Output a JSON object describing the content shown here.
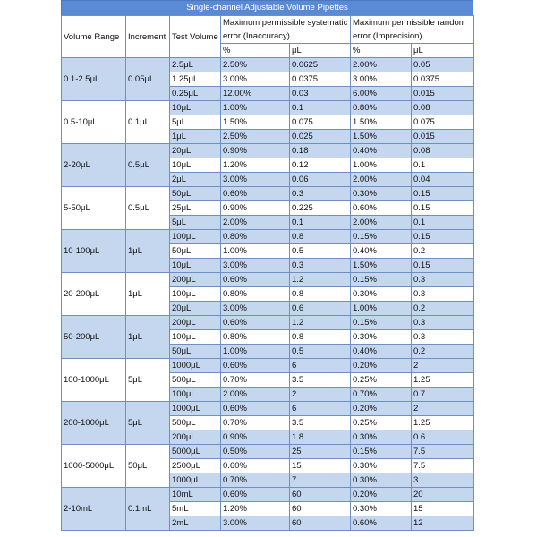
{
  "title": "Single-channel Adjustable Volume Pipettes",
  "headers": {
    "volume_range": "Volume Range",
    "increment": "Increment",
    "test_volume": "Test Volume",
    "systematic": "Maximum permissible systematic error (Inaccuracy)",
    "random": "Maximum permissible random error (Imprecision)",
    "pct": "%",
    "ul": "μL"
  },
  "groups": [
    {
      "range": "0.1-2.5μL",
      "increment": "0.05μL",
      "rows": [
        [
          "2.5μL",
          "2.50%",
          "0.0625",
          "2.00%",
          "0.05"
        ],
        [
          "1.25μL",
          "3.00%",
          "0.0375",
          "3.00%",
          "0.0375"
        ],
        [
          "0.25μL",
          "12.00%",
          "0.03",
          "6.00%",
          "0.015"
        ]
      ]
    },
    {
      "range": "0.5-10μL",
      "increment": "0.1μL",
      "rows": [
        [
          "10μL",
          "1.00%",
          "0.1",
          "0.80%",
          "0.08"
        ],
        [
          "5μL",
          "1.50%",
          "0.075",
          "1.50%",
          "0.075"
        ],
        [
          "1μL",
          "2.50%",
          "0.025",
          "1.50%",
          "0.015"
        ]
      ]
    },
    {
      "range": "2-20μL",
      "increment": "0.5μL",
      "rows": [
        [
          "20μL",
          "0.90%",
          "0.18",
          "0.40%",
          "0.08"
        ],
        [
          "10μL",
          "1.20%",
          "0.12",
          "1.00%",
          "0.1"
        ],
        [
          "2μL",
          "3.00%",
          "0.06",
          "2.00%",
          "0.04"
        ]
      ]
    },
    {
      "range": "5-50μL",
      "increment": "0.5μL",
      "rows": [
        [
          "50μL",
          "0.60%",
          "0.3",
          "0.30%",
          "0.15"
        ],
        [
          "25μL",
          "0.90%",
          "0.225",
          "0.60%",
          "0.15"
        ],
        [
          "5μL",
          "2.00%",
          "0.1",
          "2.00%",
          "0.1"
        ]
      ]
    },
    {
      "range": "10-100μL",
      "increment": "1μL",
      "rows": [
        [
          "100μL",
          "0.80%",
          "0.8",
          "0.15%",
          "0.15"
        ],
        [
          "50μL",
          "1.00%",
          "0.5",
          "0.40%",
          "0.2"
        ],
        [
          "10μL",
          "3.00%",
          "0.3",
          "1.50%",
          "0.15"
        ]
      ]
    },
    {
      "range": "20-200μL",
      "increment": "1μL",
      "rows": [
        [
          "200μL",
          "0.60%",
          "1.2",
          "0.15%",
          "0.3"
        ],
        [
          "100μL",
          "0.80%",
          "0.8",
          "0.30%",
          "0.3"
        ],
        [
          "20μL",
          "3.00%",
          "0.6",
          "1.00%",
          "0.2"
        ]
      ]
    },
    {
      "range": "50-200μL",
      "increment": "1μL",
      "rows": [
        [
          "200μL",
          "0.60%",
          "1.2",
          "0.15%",
          "0.3"
        ],
        [
          "100μL",
          "0.80%",
          "0.8",
          "0.30%",
          "0.3"
        ],
        [
          "50μL",
          "1.00%",
          "0.5",
          "0.40%",
          "0.2"
        ]
      ]
    },
    {
      "range": "100-1000μL",
      "increment": "5μL",
      "rows": [
        [
          "1000μL",
          "0.60%",
          "6",
          "0.20%",
          "2"
        ],
        [
          "500μL",
          "0.70%",
          "3.5",
          "0.25%",
          "1.25"
        ],
        [
          "100μL",
          "2.00%",
          "2",
          "0.70%",
          "0.7"
        ]
      ]
    },
    {
      "range": "200-1000μL",
      "increment": "5μL",
      "rows": [
        [
          "1000μL",
          "0.60%",
          "6",
          "0.20%",
          "2"
        ],
        [
          "500μL",
          "0.70%",
          "3.5",
          "0.25%",
          "1.25"
        ],
        [
          "200μL",
          "0.90%",
          "1.8",
          "0.30%",
          "0.6"
        ]
      ]
    },
    {
      "range": "1000-5000μL",
      "increment": "50μL",
      "rows": [
        [
          "5000μL",
          "0.50%",
          "25",
          "0.15%",
          "7.5"
        ],
        [
          "2500μL",
          "0.60%",
          "15",
          "0.30%",
          "7.5"
        ],
        [
          "1000μL",
          "0.70%",
          "7",
          "0.30%",
          "3"
        ]
      ]
    },
    {
      "range": "2-10mL",
      "increment": "0.1mL",
      "rows": [
        [
          "10mL",
          "0.60%",
          "60",
          "0.20%",
          "20"
        ],
        [
          "5mL",
          "1.20%",
          "60",
          "0.30%",
          "15"
        ],
        [
          "2mL",
          "3.00%",
          "60",
          "0.60%",
          "12"
        ]
      ]
    }
  ]
}
